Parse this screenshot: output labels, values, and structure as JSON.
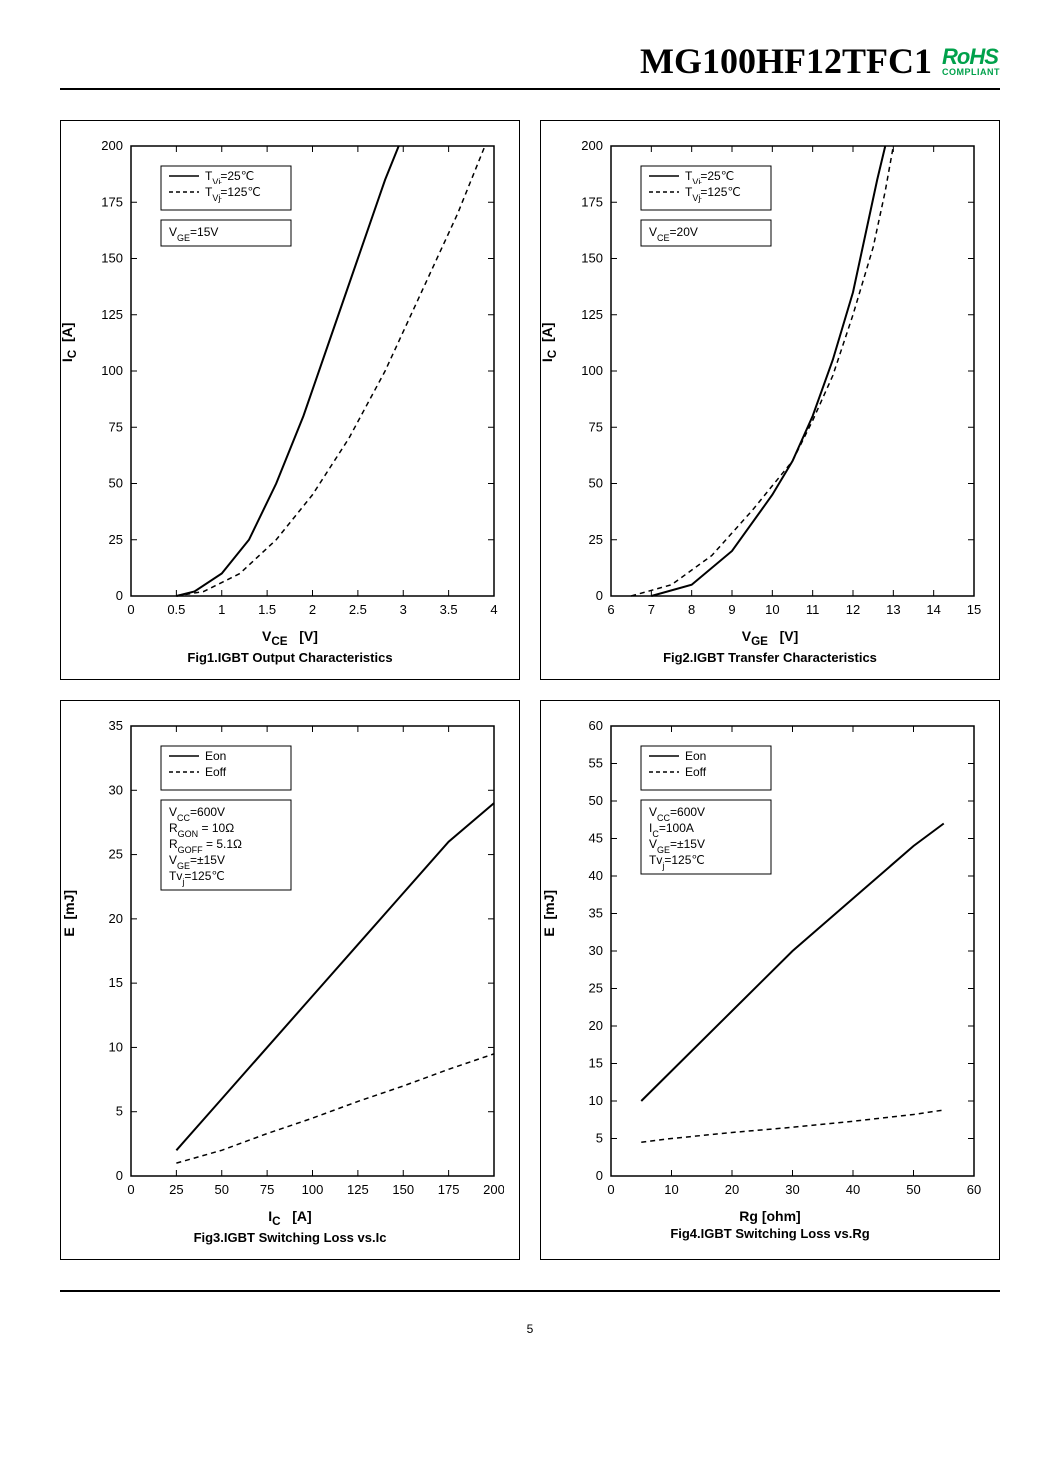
{
  "header": {
    "part_number": "MG100HF12TFC1",
    "rohs_top": "RoHS",
    "rohs_bottom": "COMPLIANT"
  },
  "page_number": "5",
  "charts": {
    "fig1": {
      "type": "line",
      "title": "Fig1.IGBT Output Characteristics",
      "xlabel": "V_CE   [V]",
      "ylabel": "I_C  [A]",
      "xlim": [
        0,
        4
      ],
      "ylim": [
        0,
        200
      ],
      "xtick_step": 0.5,
      "ytick_step": 25,
      "xticks": [
        "0",
        "0.5",
        "1",
        "1.5",
        "2",
        "2.5",
        "3",
        "3.5",
        "4"
      ],
      "yticks": [
        "0",
        "25",
        "50",
        "75",
        "100",
        "125",
        "150",
        "175",
        "200"
      ],
      "background": "#ffffff",
      "axis_color": "#000000",
      "legend_items": [
        {
          "label": "T_Vj=25℃",
          "style": "solid"
        },
        {
          "label": "T_Vj=125℃",
          "style": "dashed"
        }
      ],
      "condition": "V_GE=15V",
      "series": [
        {
          "name": "25C",
          "style": "solid",
          "color": "#000000",
          "width": 2,
          "data": [
            [
              0.5,
              0
            ],
            [
              0.7,
              2
            ],
            [
              1.0,
              10
            ],
            [
              1.3,
              25
            ],
            [
              1.6,
              50
            ],
            [
              1.9,
              80
            ],
            [
              2.2,
              115
            ],
            [
              2.5,
              150
            ],
            [
              2.8,
              185
            ],
            [
              2.95,
              200
            ]
          ]
        },
        {
          "name": "125C",
          "style": "dashed",
          "color": "#000000",
          "width": 1.5,
          "data": [
            [
              0.5,
              0
            ],
            [
              0.8,
              2
            ],
            [
              1.2,
              10
            ],
            [
              1.6,
              25
            ],
            [
              2.0,
              45
            ],
            [
              2.4,
              70
            ],
            [
              2.8,
              100
            ],
            [
              3.2,
              135
            ],
            [
              3.6,
              170
            ],
            [
              3.9,
              200
            ]
          ]
        }
      ]
    },
    "fig2": {
      "type": "line",
      "title": "Fig2.IGBT Transfer Characteristics",
      "xlabel": "V_GE   [V]",
      "ylabel": "I_C  [A]",
      "xlim": [
        6,
        15
      ],
      "ylim": [
        0,
        200
      ],
      "xtick_step": 1,
      "ytick_step": 25,
      "xticks": [
        "6",
        "7",
        "8",
        "9",
        "10",
        "11",
        "12",
        "13",
        "14",
        "15"
      ],
      "yticks": [
        "0",
        "25",
        "50",
        "75",
        "100",
        "125",
        "150",
        "175",
        "200"
      ],
      "background": "#ffffff",
      "axis_color": "#000000",
      "legend_items": [
        {
          "label": "T_Vj=25℃",
          "style": "solid"
        },
        {
          "label": "T_Vj=125℃",
          "style": "dashed"
        }
      ],
      "condition": "V_CE=20V",
      "series": [
        {
          "name": "25C",
          "style": "solid",
          "color": "#000000",
          "width": 2,
          "data": [
            [
              7.0,
              0
            ],
            [
              8.0,
              5
            ],
            [
              9.0,
              20
            ],
            [
              10.0,
              45
            ],
            [
              10.5,
              60
            ],
            [
              11.0,
              80
            ],
            [
              11.5,
              105
            ],
            [
              12.0,
              135
            ],
            [
              12.3,
              160
            ],
            [
              12.6,
              185
            ],
            [
              12.8,
              200
            ]
          ]
        },
        {
          "name": "125C",
          "style": "dashed",
          "color": "#000000",
          "width": 1.5,
          "data": [
            [
              6.5,
              0
            ],
            [
              7.5,
              5
            ],
            [
              8.5,
              18
            ],
            [
              9.5,
              38
            ],
            [
              10.5,
              60
            ],
            [
              11.0,
              78
            ],
            [
              11.5,
              98
            ],
            [
              12.0,
              125
            ],
            [
              12.5,
              155
            ],
            [
              12.8,
              180
            ],
            [
              13.0,
              200
            ]
          ]
        }
      ]
    },
    "fig3": {
      "type": "line",
      "title": "Fig3.IGBT Switching Loss vs.Ic",
      "xlabel": "I_C   [A]",
      "ylabel": "E  [mJ]",
      "xlim": [
        0,
        200
      ],
      "ylim": [
        0,
        35
      ],
      "xtick_step": 25,
      "ytick_step": 5,
      "xticks": [
        "0",
        "25",
        "50",
        "75",
        "100",
        "125",
        "150",
        "175",
        "200"
      ],
      "yticks": [
        "0",
        "5",
        "10",
        "15",
        "20",
        "25",
        "30",
        "35"
      ],
      "background": "#ffffff",
      "axis_color": "#000000",
      "legend_items": [
        {
          "label": "Eon",
          "style": "solid"
        },
        {
          "label": "Eoff",
          "style": "dashed"
        }
      ],
      "conditions": [
        "V_CC=600V",
        "R_GON = 10Ω",
        "R_GOFF = 5.1Ω",
        "V_GE=±15V",
        "Tv_j=125℃"
      ],
      "series": [
        {
          "name": "Eon",
          "style": "solid",
          "color": "#000000",
          "width": 2,
          "data": [
            [
              25,
              2
            ],
            [
              50,
              6
            ],
            [
              75,
              10
            ],
            [
              100,
              14
            ],
            [
              125,
              18
            ],
            [
              150,
              22
            ],
            [
              175,
              26
            ],
            [
              200,
              29
            ]
          ]
        },
        {
          "name": "Eoff",
          "style": "dashed",
          "color": "#000000",
          "width": 1.5,
          "data": [
            [
              25,
              1
            ],
            [
              50,
              2
            ],
            [
              75,
              3.3
            ],
            [
              100,
              4.5
            ],
            [
              125,
              5.8
            ],
            [
              150,
              7
            ],
            [
              175,
              8.3
            ],
            [
              200,
              9.5
            ]
          ]
        }
      ]
    },
    "fig4": {
      "type": "line",
      "title": "Fig4.IGBT Switching Loss vs.Rg",
      "xlabel": "Rg  [ohm]",
      "ylabel": "E  [mJ]",
      "xlim": [
        0,
        60
      ],
      "ylim": [
        0,
        60
      ],
      "xtick_step": 10,
      "ytick_step": 5,
      "xticks": [
        "0",
        "10",
        "20",
        "30",
        "40",
        "50",
        "60"
      ],
      "yticks": [
        "0",
        "5",
        "10",
        "15",
        "20",
        "25",
        "30",
        "35",
        "40",
        "45",
        "50",
        "55",
        "60"
      ],
      "background": "#ffffff",
      "axis_color": "#000000",
      "legend_items": [
        {
          "label": "Eon",
          "style": "solid"
        },
        {
          "label": "Eoff",
          "style": "dashed"
        }
      ],
      "conditions": [
        "V_CC=600V",
        "I_C=100A",
        "V_GE=±15V",
        "Tv_j=125℃"
      ],
      "series": [
        {
          "name": "Eon",
          "style": "solid",
          "color": "#000000",
          "width": 2,
          "data": [
            [
              5,
              10
            ],
            [
              10,
              14
            ],
            [
              20,
              22
            ],
            [
              30,
              30
            ],
            [
              40,
              37
            ],
            [
              50,
              44
            ],
            [
              55,
              47
            ]
          ]
        },
        {
          "name": "Eoff",
          "style": "dashed",
          "color": "#000000",
          "width": 1.5,
          "data": [
            [
              5,
              4.5
            ],
            [
              10,
              5
            ],
            [
              20,
              5.8
            ],
            [
              30,
              6.5
            ],
            [
              40,
              7.3
            ],
            [
              50,
              8.2
            ],
            [
              55,
              8.8
            ]
          ]
        }
      ]
    }
  }
}
